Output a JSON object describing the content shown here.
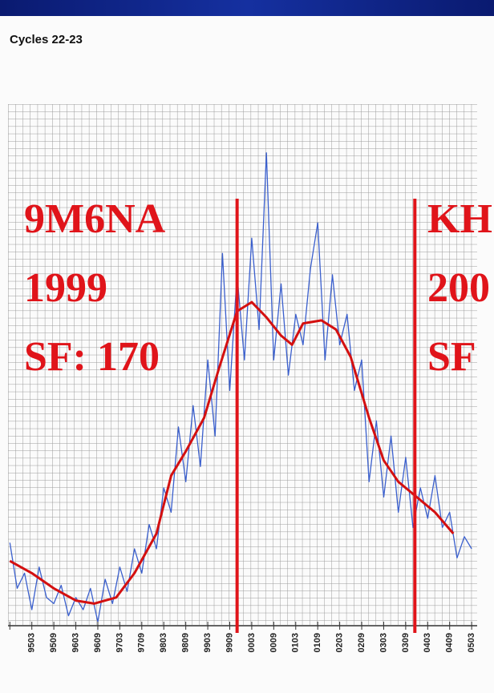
{
  "chart_data": {
    "type": "line",
    "title": "Cycles 22-23",
    "xlim": [
      -6.5,
      121.5
    ],
    "ylim": [
      63,
      234
    ],
    "xticks": [
      {
        "value": -6,
        "label": null
      },
      {
        "value": 0,
        "label": "9503"
      },
      {
        "value": 6,
        "label": "9509"
      },
      {
        "value": 12,
        "label": "9603"
      },
      {
        "value": 18,
        "label": "9609"
      },
      {
        "value": 24,
        "label": "9703"
      },
      {
        "value": 30,
        "label": "9709"
      },
      {
        "value": 36,
        "label": "9803"
      },
      {
        "value": 42,
        "label": "9809"
      },
      {
        "value": 48,
        "label": "9903"
      },
      {
        "value": 54,
        "label": "9909"
      },
      {
        "value": 60,
        "label": "0003"
      },
      {
        "value": 66,
        "label": "0009"
      },
      {
        "value": 72,
        "label": "0103"
      },
      {
        "value": 78,
        "label": "0109"
      },
      {
        "value": 84,
        "label": "0203"
      },
      {
        "value": 90,
        "label": "0209"
      },
      {
        "value": 96,
        "label": "0303"
      },
      {
        "value": 102,
        "label": "0309"
      },
      {
        "value": 108,
        "label": "0403"
      },
      {
        "value": 114,
        "label": "0409"
      },
      {
        "value": 120,
        "label": "0503"
      }
    ],
    "series": [
      {
        "color": "#3a5fcd",
        "x": [
          -6,
          -4,
          -2,
          0,
          2,
          4,
          6,
          8,
          10,
          12,
          14,
          16,
          18,
          20,
          22,
          24,
          26,
          28,
          30,
          32,
          34,
          36,
          38,
          40,
          42,
          44,
          46,
          48,
          50,
          52,
          54,
          56,
          58,
          60,
          62,
          64,
          66,
          68,
          70,
          72,
          74,
          76,
          78,
          80,
          82,
          84,
          86,
          88,
          90,
          92,
          94,
          96,
          98,
          100,
          102,
          104,
          106,
          108,
          110,
          112,
          114,
          116,
          118,
          120
        ],
        "values": [
          90,
          75,
          80,
          68,
          82,
          72,
          70,
          76,
          66,
          72,
          68,
          75,
          64,
          78,
          70,
          82,
          74,
          88,
          80,
          96,
          88,
          108,
          100,
          128,
          110,
          135,
          115,
          150,
          125,
          185,
          140,
          178,
          150,
          190,
          160,
          218,
          150,
          175,
          145,
          165,
          155,
          180,
          195,
          150,
          178,
          155,
          165,
          140,
          150,
          110,
          130,
          105,
          125,
          100,
          118,
          95,
          108,
          98,
          112,
          95,
          100,
          85,
          92,
          88
        ]
      },
      {
        "color": "#d41010",
        "x": [
          -6,
          0,
          6,
          12,
          17,
          23,
          28,
          34,
          38,
          42,
          47,
          51,
          56,
          60,
          64,
          68,
          71,
          74,
          79,
          83,
          87,
          92,
          96,
          100,
          105,
          110,
          115
        ],
        "values": [
          84,
          80,
          75,
          71,
          70,
          72,
          80,
          93,
          112,
          120,
          131,
          147,
          166,
          169,
          164,
          158,
          155,
          162,
          163,
          160,
          151,
          131,
          117,
          110,
          105,
          100,
          93
        ]
      }
    ],
    "reference_lines": {
      "color": "#e0141a",
      "x": [
        56,
        104.5
      ]
    },
    "annotations": [
      {
        "lines": [
          "9M6NA",
          "1999",
          "SF: 170"
        ]
      },
      {
        "lines": [
          "KH",
          "200",
          "SF"
        ]
      }
    ]
  }
}
